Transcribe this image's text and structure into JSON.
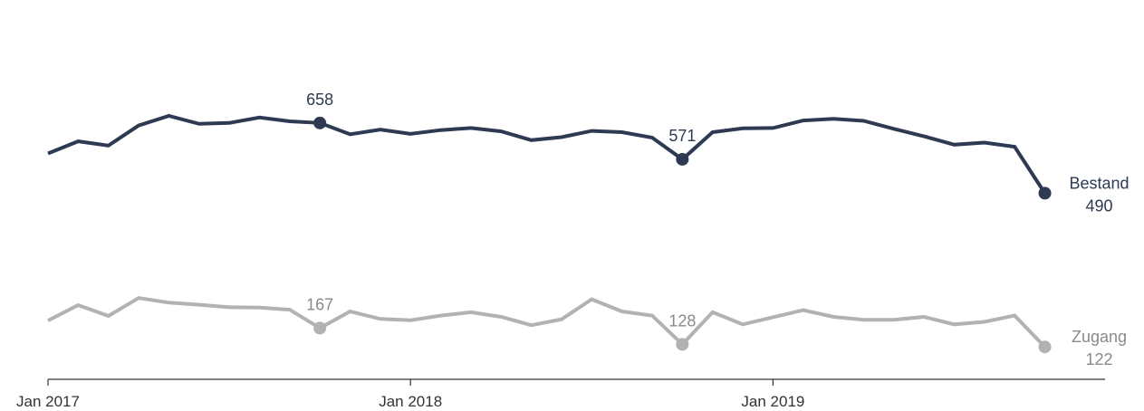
{
  "chart_data": {
    "type": "line",
    "title": "",
    "xlabel": "",
    "ylabel": "",
    "x": [
      "2017-01",
      "2017-02",
      "2017-03",
      "2017-04",
      "2017-05",
      "2017-06",
      "2017-07",
      "2017-08",
      "2017-09",
      "2017-10",
      "2017-11",
      "2017-12",
      "2018-01",
      "2018-02",
      "2018-03",
      "2018-04",
      "2018-05",
      "2018-06",
      "2018-07",
      "2018-08",
      "2018-09",
      "2018-10",
      "2018-11",
      "2018-12",
      "2019-01",
      "2019-02",
      "2019-03",
      "2019-04",
      "2019-05",
      "2019-06",
      "2019-07",
      "2019-08",
      "2019-09",
      "2019-10"
    ],
    "xticks": [
      {
        "x": "2017-01",
        "label": "Jan 2017"
      },
      {
        "x": "2018-01",
        "label": "Jan 2018"
      },
      {
        "x": "2019-01",
        "label": "Jan 2019"
      }
    ],
    "ylim": [
      0,
      800
    ],
    "grid": false,
    "series": [
      {
        "name": "Bestand",
        "color": "#2d3a52",
        "values": [
          585,
          614,
          604,
          652,
          675,
          656,
          658,
          671,
          662,
          658,
          631,
          642,
          632,
          641,
          646,
          638,
          617,
          624,
          639,
          636,
          623,
          571,
          636,
          645,
          646,
          664,
          668,
          663,
          644,
          626,
          606,
          611,
          601,
          490
        ],
        "end_label": "Bestand",
        "end_value": "490",
        "highlights": [
          {
            "x": "2017-10",
            "label": "658"
          },
          {
            "x": "2018-10",
            "label": "571"
          },
          {
            "x": "2019-10",
            "label": null
          }
        ]
      },
      {
        "name": "Zugang",
        "color": "#b2b2b2",
        "values": [
          185,
          222,
          196,
          239,
          228,
          223,
          217,
          216,
          211,
          167,
          207,
          189,
          186,
          197,
          205,
          194,
          174,
          188,
          236,
          207,
          197,
          128,
          205,
          176,
          193,
          210,
          194,
          187,
          187,
          194,
          176,
          182,
          197,
          122
        ],
        "end_label": "Zugang",
        "end_value": "122",
        "highlights": [
          {
            "x": "2017-10",
            "label": "167"
          },
          {
            "x": "2018-10",
            "label": "128"
          },
          {
            "x": "2019-10",
            "label": null
          }
        ]
      }
    ]
  }
}
